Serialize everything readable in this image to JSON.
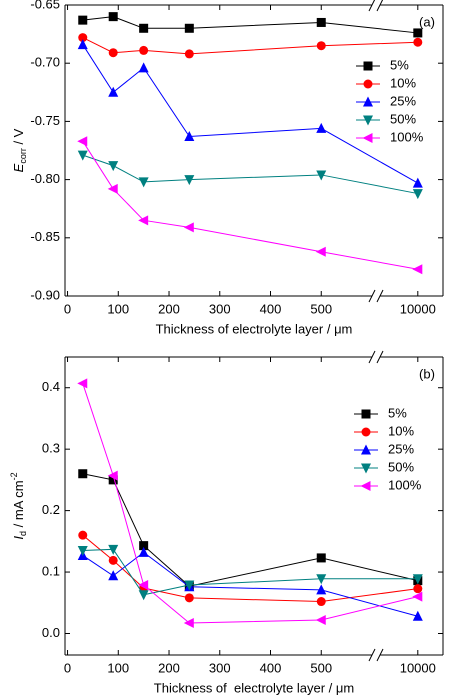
{
  "chart_data": [
    {
      "type": "line",
      "panel_label": "(a)",
      "x_label": "Thickness of electrolyte layer / μm",
      "y_label": {
        "symbol": "E",
        "subscript": "corr",
        "unit": " / V"
      },
      "x": [
        30,
        90,
        150,
        240,
        500,
        10000
      ],
      "xlim": [
        -5,
        10200
      ],
      "x_break": [
        600,
        9700
      ],
      "xticks": [
        0,
        100,
        200,
        300,
        400,
        500,
        10000
      ],
      "ylim": [
        -0.9,
        -0.65
      ],
      "yticks": [
        {
          "value": -0.9,
          "label": "-0.90"
        },
        {
          "value": -0.85,
          "label": "-0.85"
        },
        {
          "value": -0.8,
          "label": "-0.80"
        },
        {
          "value": -0.75,
          "label": "-0.75"
        },
        {
          "value": -0.7,
          "label": "-0.70"
        },
        {
          "value": -0.65,
          "label": "-0.65"
        }
      ],
      "legend_loc": "upper right",
      "series": [
        {
          "name": "5%",
          "color": "#000000",
          "marker": "square",
          "values": [
            -0.663,
            -0.66,
            -0.67,
            -0.67,
            -0.665,
            -0.674
          ]
        },
        {
          "name": "10%",
          "color": "#ff0000",
          "marker": "circle",
          "values": [
            -0.678,
            -0.691,
            -0.689,
            -0.692,
            -0.685,
            -0.682
          ]
        },
        {
          "name": "25%",
          "color": "#0000ff",
          "marker": "triangle-up",
          "values": [
            -0.684,
            -0.725,
            -0.704,
            -0.763,
            -0.756,
            -0.803
          ]
        },
        {
          "name": "50%",
          "color": "#008080",
          "marker": "triangle-down",
          "values": [
            -0.779,
            -0.788,
            -0.802,
            -0.8,
            -0.796,
            -0.812
          ]
        },
        {
          "name": "100%",
          "color": "#ff00ff",
          "marker": "triangle-left",
          "values": [
            -0.767,
            -0.808,
            -0.835,
            -0.841,
            -0.862,
            -0.877
          ]
        }
      ]
    },
    {
      "type": "line",
      "panel_label": "(b)",
      "x_label": "Thickness of  electrolyte layer / μm",
      "y_label": {
        "symbol": "I",
        "subscript": "d",
        "unit": " / mA cm",
        "superscript": "-2"
      },
      "x": [
        30,
        90,
        150,
        240,
        500,
        10000
      ],
      "xlim": [
        -5,
        10200
      ],
      "x_break": [
        600,
        9700
      ],
      "xticks": [
        0,
        100,
        200,
        300,
        400,
        500,
        10000
      ],
      "ylim": [
        -0.035,
        0.45
      ],
      "yticks": [
        {
          "value": 0,
          "label": "0.0"
        },
        0.1,
        0.2,
        0.3,
        0.4
      ],
      "legend_loc": "upper right",
      "series": [
        {
          "name": "5%",
          "color": "#000000",
          "marker": "square",
          "values": [
            0.26,
            0.25,
            0.143,
            0.077,
            0.123,
            0.086
          ]
        },
        {
          "name": "10%",
          "color": "#ff0000",
          "marker": "circle",
          "values": [
            0.16,
            0.119,
            0.074,
            0.058,
            0.052,
            0.073
          ]
        },
        {
          "name": "25%",
          "color": "#0000ff",
          "marker": "triangle-up",
          "values": [
            0.127,
            0.094,
            0.132,
            0.076,
            0.071,
            0.028
          ]
        },
        {
          "name": "50%",
          "color": "#008080",
          "marker": "triangle-down",
          "values": [
            0.135,
            0.137,
            0.063,
            0.079,
            0.089,
            0.089
          ]
        },
        {
          "name": "100%",
          "color": "#ff00ff",
          "marker": "triangle-left",
          "values": [
            0.407,
            0.257,
            0.079,
            0.017,
            0.022,
            0.06
          ]
        }
      ]
    }
  ]
}
